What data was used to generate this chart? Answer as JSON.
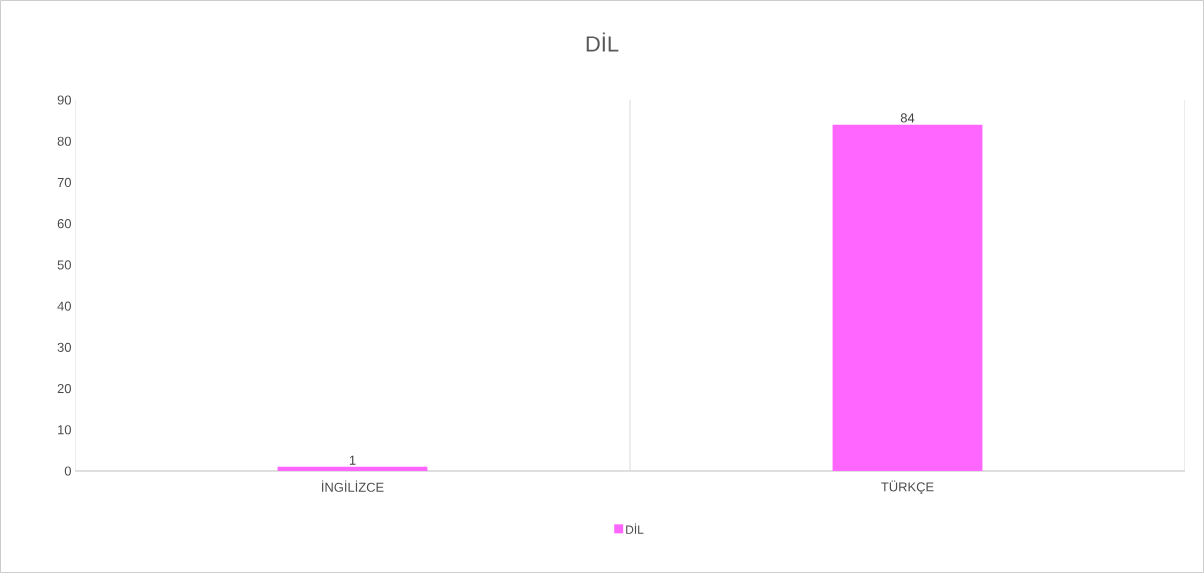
{
  "chart_data": {
    "type": "bar",
    "title": "DİL",
    "categories": [
      "İNGİLİZCE",
      "TÜRKÇE"
    ],
    "series": [
      {
        "name": "DİL",
        "color": "#ff66ff",
        "values": [
          1,
          84
        ]
      }
    ],
    "ylim": [
      0,
      90
    ],
    "yticks": [
      0,
      10,
      20,
      30,
      40,
      50,
      60,
      70,
      80,
      90
    ],
    "data_labels": true,
    "grid": "x",
    "legend": "bottom"
  }
}
